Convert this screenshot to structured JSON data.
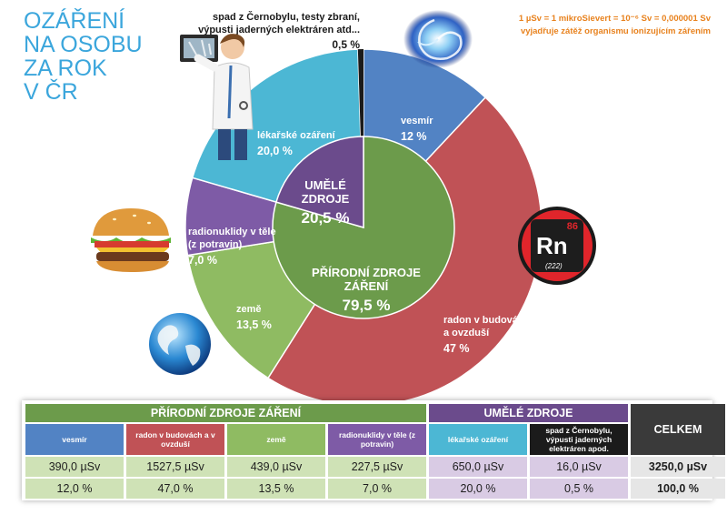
{
  "title_lines": [
    "OZÁŘENÍ",
    "NA OSOBU",
    "ZA ROK",
    "V ČR"
  ],
  "unit_note": [
    "1 µSv = 1 mikroSievert = 10⁻⁶ Sv = 0,000001 Sv",
    "vyjadřuje zátěž organismu ionizujícím zářením"
  ],
  "colors": {
    "vesmir": "#5283c4",
    "radon": "#c05256",
    "zeme": "#8fbb62",
    "radionuklidy": "#7e5ba6",
    "lekarske": "#4cb7d4",
    "spad": "#1b1b1b",
    "prirodni_center": "#6c9b4b",
    "umele_center": "#6b4b8c",
    "light_green": "#cfe2b6",
    "light_purple": "#d9cbe4",
    "grey": "#e6e6e6",
    "title": "#3ba6dc",
    "note": "#e8821e"
  },
  "icons": [
    "doctor-xray-icon",
    "spiral-galaxy-icon",
    "radon-element-icon",
    "burger-icon",
    "earth-globe-icon"
  ],
  "radon_tile": {
    "number": "86",
    "symbol": "Rn",
    "mass": "(222)"
  },
  "chart_data": {
    "type": "pie",
    "title": "OZÁŘENÍ NA OSOBU ZA ROK V ČR",
    "slices": [
      {
        "key": "vesmir",
        "label": "vesmír",
        "value_label": "12 %",
        "value": 12.0
      },
      {
        "key": "radon",
        "label": "radon v budovách a v ovzduší",
        "value_label": "47 %",
        "value": 47.0
      },
      {
        "key": "zeme",
        "label": "země",
        "value_label": "13,5 %",
        "value": 13.5
      },
      {
        "key": "radionuklidy",
        "label": "radionuklidy v těle (z potravin)",
        "value_label": "7,0 %",
        "value": 7.0
      },
      {
        "key": "lekarske",
        "label": "lékařské ozáření",
        "value_label": "20,0 %",
        "value": 20.0
      },
      {
        "key": "spad",
        "label": "spad z Černobylu, testy zbraní, výpusti jaderných elektráren atd...",
        "value_label": "0,5 %",
        "value": 0.5
      }
    ],
    "groups": [
      {
        "key": "prirodni",
        "label": "PŘÍRODNÍ ZDROJE ZÁŘENÍ",
        "value_label": "79,5 %",
        "value": 79.5
      },
      {
        "key": "umele",
        "label": "UMĚLÉ ZDROJE",
        "value_label": "20,5 %",
        "value": 20.5
      }
    ]
  },
  "pie_labels": {
    "vesmir": [
      "vesmír"
    ],
    "radon": [
      "radon v budovách",
      "a ovzduší"
    ],
    "zeme": [
      "země"
    ],
    "radionuklidy": [
      "radionuklidy v těle",
      "(z potravin)"
    ],
    "lekarske": [
      "lékařské ozáření"
    ],
    "spad": [
      "spad z Černobylu, testy zbraní,",
      "výpusti jaderných elektráren atd..."
    ],
    "umele": [
      "UMĚLÉ",
      "ZDROJE"
    ],
    "prirodni": [
      "PŘÍRODNÍ ZDROJE ZÁŘENÍ"
    ]
  },
  "table": {
    "group_natural": "PŘÍRODNÍ ZDROJE ZÁŘENÍ",
    "group_artificial": "UMĚLÉ ZDROJE",
    "total_header": "CELKEM",
    "columns": [
      {
        "label": "vesmír",
        "usv": "390,0 µSv",
        "pct": "12,0 %"
      },
      {
        "label": "radon v budovách a v ovzduší",
        "usv": "1527,5 µSv",
        "pct": "47,0 %"
      },
      {
        "label": "země",
        "usv": "439,0 µSv",
        "pct": "13,5 %"
      },
      {
        "label": "radionuklidy v těle (z potravin)",
        "usv": "227,5 µSv",
        "pct": "7,0 %"
      },
      {
        "label": "lékařské ozáření",
        "usv": "650,0 µSv",
        "pct": "20,0 %"
      },
      {
        "label": "spad z Černobylu, výpusti jaderných elektráren apod.",
        "usv": "16,0 µSv",
        "pct": "0,5 %"
      }
    ],
    "total": {
      "usv": "3250,0 µSv",
      "pct": "100,0 %"
    }
  }
}
